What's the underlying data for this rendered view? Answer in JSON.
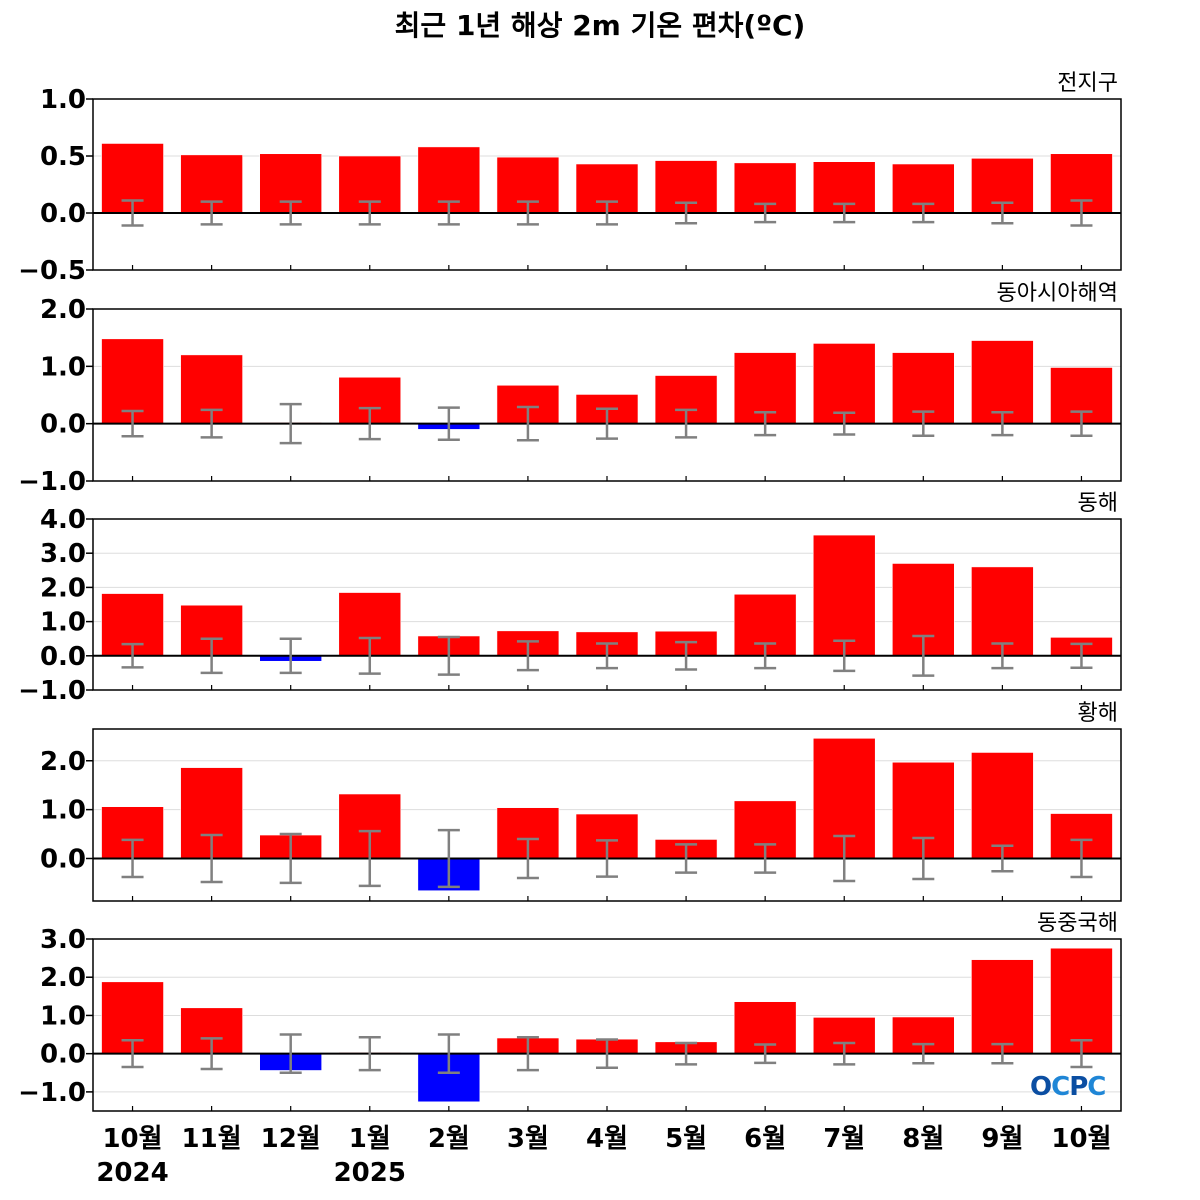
{
  "title": "최근 1년 해상 2m 기온 편차(ºC)",
  "logo": {
    "text": "OCPC",
    "colors": [
      "#0b4ea2",
      "#1f86d6"
    ]
  },
  "colors": {
    "positive": "#ff0000",
    "negative": "#0000ff",
    "errorbar": "#808080",
    "zero_line": "#000000",
    "grid": "#dddddd"
  },
  "x_labels": [
    "10월",
    "11월",
    "12월",
    "1월",
    "2월",
    "3월",
    "4월",
    "5월",
    "6월",
    "7월",
    "8월",
    "9월",
    "10월"
  ],
  "year_labels": [
    {
      "index": 0,
      "text": "2024"
    },
    {
      "index": 3,
      "text": "2025"
    }
  ],
  "chart_data": [
    {
      "type": "bar",
      "region": "전지구",
      "categories": [
        "10월",
        "11월",
        "12월",
        "1월",
        "2월",
        "3월",
        "4월",
        "5월",
        "6월",
        "7월",
        "8월",
        "9월",
        "10월"
      ],
      "values": [
        0.61,
        0.51,
        0.52,
        0.5,
        0.58,
        0.49,
        0.43,
        0.46,
        0.44,
        0.45,
        0.43,
        0.48,
        0.52
      ],
      "error": [
        0.11,
        0.1,
        0.1,
        0.1,
        0.1,
        0.1,
        0.1,
        0.09,
        0.08,
        0.08,
        0.08,
        0.09,
        0.11
      ],
      "ylim": [
        -0.5,
        1.0
      ],
      "yticks": [
        1.0,
        0.5,
        0.0,
        -0.5
      ],
      "yticklabels": [
        "1.0",
        "0.5",
        "0.0",
        "−0.5"
      ],
      "grid": true
    },
    {
      "type": "bar",
      "region": "동아시아해역",
      "categories": [
        "10월",
        "11월",
        "12월",
        "1월",
        "2월",
        "3월",
        "4월",
        "5월",
        "6월",
        "7월",
        "8월",
        "9월",
        "10월"
      ],
      "values": [
        1.48,
        1.2,
        0.02,
        0.81,
        -0.1,
        0.67,
        0.51,
        0.84,
        1.24,
        1.4,
        1.24,
        1.45,
        0.98
      ],
      "error": [
        0.22,
        0.24,
        0.34,
        0.27,
        0.28,
        0.29,
        0.26,
        0.24,
        0.2,
        0.19,
        0.21,
        0.2,
        0.21
      ],
      "ylim": [
        -1.0,
        2.0
      ],
      "yticks": [
        2.0,
        1.0,
        0.0,
        -1.0
      ],
      "yticklabels": [
        "2.0",
        "1.0",
        "0.0",
        "−1.0"
      ],
      "grid": true
    },
    {
      "type": "bar",
      "region": "동해",
      "categories": [
        "10월",
        "11월",
        "12월",
        "1월",
        "2월",
        "3월",
        "4월",
        "5월",
        "6월",
        "7월",
        "8월",
        "9월",
        "10월"
      ],
      "values": [
        1.82,
        1.48,
        -0.16,
        1.85,
        0.58,
        0.73,
        0.7,
        0.72,
        1.8,
        3.53,
        2.7,
        2.6,
        0.54
      ],
      "error": [
        0.34,
        0.5,
        0.5,
        0.52,
        0.55,
        0.42,
        0.36,
        0.4,
        0.36,
        0.44,
        0.58,
        0.36,
        0.35
      ],
      "ylim": [
        -1.0,
        4.0
      ],
      "yticks": [
        4.0,
        3.0,
        2.0,
        1.0,
        0.0,
        -1.0
      ],
      "yticklabels": [
        "4.0",
        "3.0",
        "2.0",
        "1.0",
        "0.0",
        "−1.0"
      ],
      "grid": true
    },
    {
      "type": "bar",
      "region": "황해",
      "categories": [
        "10월",
        "11월",
        "12월",
        "1월",
        "2월",
        "3월",
        "4월",
        "5월",
        "6월",
        "7월",
        "8월",
        "9월",
        "10월"
      ],
      "values": [
        1.06,
        1.86,
        0.48,
        1.32,
        -0.66,
        1.04,
        0.91,
        0.39,
        1.18,
        2.46,
        1.97,
        2.17,
        0.92
      ],
      "error": [
        0.38,
        0.48,
        0.5,
        0.56,
        0.58,
        0.4,
        0.37,
        0.29,
        0.29,
        0.46,
        0.42,
        0.26,
        0.38
      ],
      "ylim": [
        -0.87,
        2.65
      ],
      "yticks": [
        2.0,
        1.0,
        0.0
      ],
      "yticklabels": [
        "2.0",
        "1.0",
        "0.0"
      ],
      "grid": true
    },
    {
      "type": "bar",
      "region": "동중국해",
      "categories": [
        "10월",
        "11월",
        "12월",
        "1월",
        "2월",
        "3월",
        "4월",
        "5월",
        "6월",
        "7월",
        "8월",
        "9월",
        "10월"
      ],
      "values": [
        1.88,
        1.2,
        -0.44,
        0.03,
        -1.26,
        0.41,
        0.38,
        0.31,
        1.36,
        0.95,
        0.96,
        2.46,
        2.76
      ],
      "error": [
        0.35,
        0.4,
        0.5,
        0.43,
        0.5,
        0.43,
        0.37,
        0.28,
        0.24,
        0.28,
        0.25,
        0.25,
        0.35
      ],
      "ylim": [
        -1.5,
        3.0
      ],
      "yticks": [
        3.0,
        2.0,
        1.0,
        0.0,
        -1.0
      ],
      "yticklabels": [
        "3.0",
        "2.0",
        "1.0",
        "0.0",
        "−1.0"
      ],
      "grid": true
    }
  ]
}
